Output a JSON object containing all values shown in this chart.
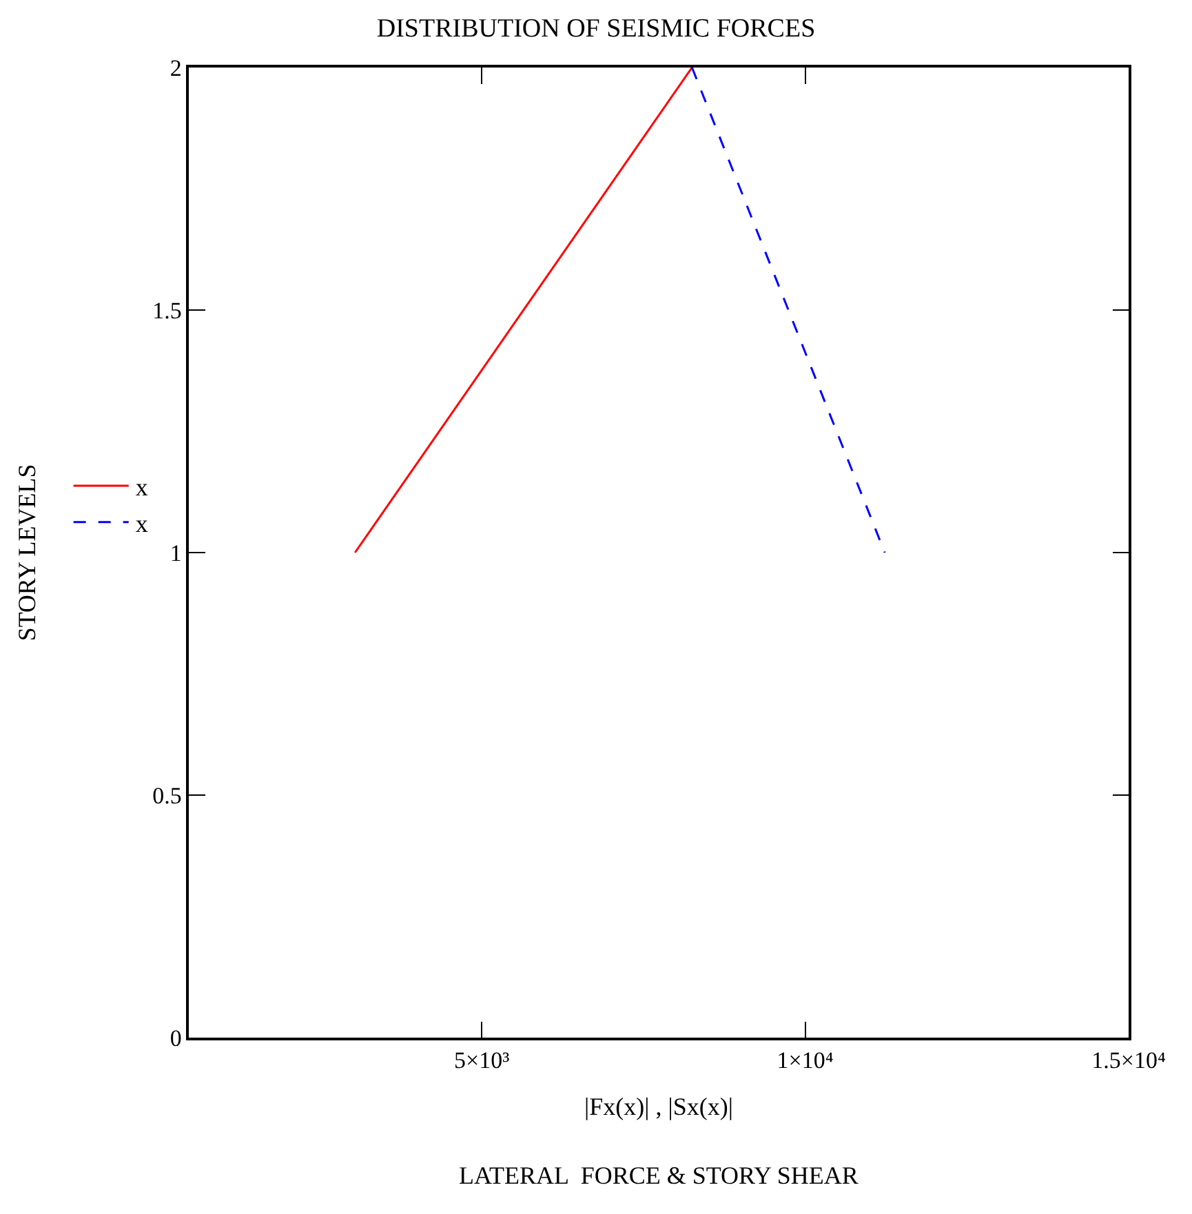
{
  "chart_data": {
    "type": "line",
    "title": "DISTRIBUTION OF SEISMIC FORCES",
    "xlabel": "|Fx(x)| , |Sx(x)|",
    "ylabel": "STORY LEVELS",
    "annotations": [
      "LATERAL  FORCE & STORY SHEAR"
    ],
    "series": [
      {
        "name": "x",
        "color": "#ff0000",
        "line_style": "solid",
        "x": [
          3040,
          8250
        ],
        "values": [
          1,
          2
        ]
      },
      {
        "name": "x",
        "color": "#0000ff",
        "line_style": "dashed",
        "x": [
          8250,
          11230
        ],
        "values": [
          2,
          1
        ]
      }
    ],
    "xlim": [
      470,
      15000
    ],
    "xticks": [
      {
        "value": 5000,
        "label": "5×10³"
      },
      {
        "value": 10000,
        "label": "1×10⁴"
      },
      {
        "value": 15000,
        "label": "1.5×10⁴"
      }
    ],
    "ylim": [
      0,
      2
    ],
    "yticks": [
      0,
      0.5,
      1,
      1.5,
      2
    ],
    "legend": "left",
    "marker": "none"
  }
}
